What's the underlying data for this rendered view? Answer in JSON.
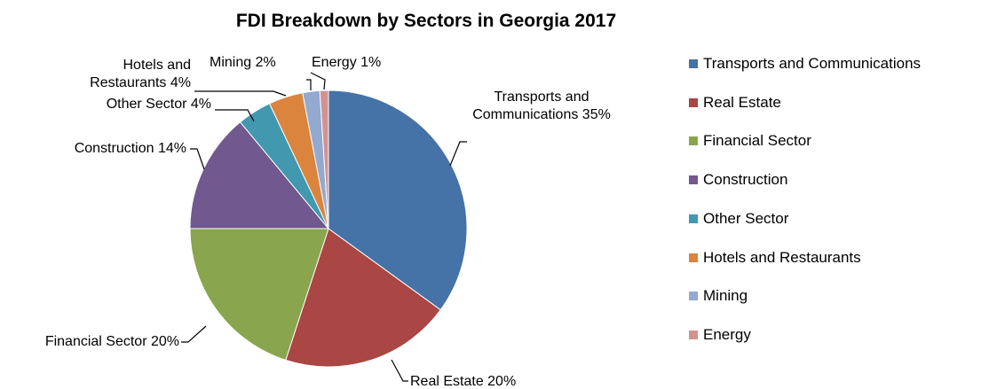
{
  "chart_data": {
    "type": "pie",
    "title": "FDI Breakdown by Sectors in Georgia 2017",
    "legend_position": "right",
    "slices": [
      {
        "name": "Transports and Communications",
        "value": 35,
        "label_lines": [
          "Transports and",
          "Communications 35%"
        ],
        "color": "#4572A7"
      },
      {
        "name": "Real Estate",
        "value": 20,
        "label_lines": [
          "Real Estate 20%"
        ],
        "color": "#AA4643"
      },
      {
        "name": "Financial Sector",
        "value": 20,
        "label_lines": [
          "Financial Sector 20%"
        ],
        "color": "#89A54E"
      },
      {
        "name": "Construction",
        "value": 14,
        "label_lines": [
          "Construction  14%"
        ],
        "color": "#71588F"
      },
      {
        "name": "Other Sector",
        "value": 4,
        "label_lines": [
          "Other Sector 4%"
        ],
        "color": "#4198AF"
      },
      {
        "name": "Hotels and Restaurants",
        "value": 4,
        "label_lines": [
          "Hotels and",
          "Restaurants 4%"
        ],
        "color": "#DB843D"
      },
      {
        "name": "Mining",
        "value": 2,
        "label_lines": [
          "Mining 2%"
        ],
        "color": "#93A9CF"
      },
      {
        "name": "Energy",
        "value": 1,
        "label_lines": [
          "Energy 1%"
        ],
        "color": "#D19392"
      }
    ]
  }
}
